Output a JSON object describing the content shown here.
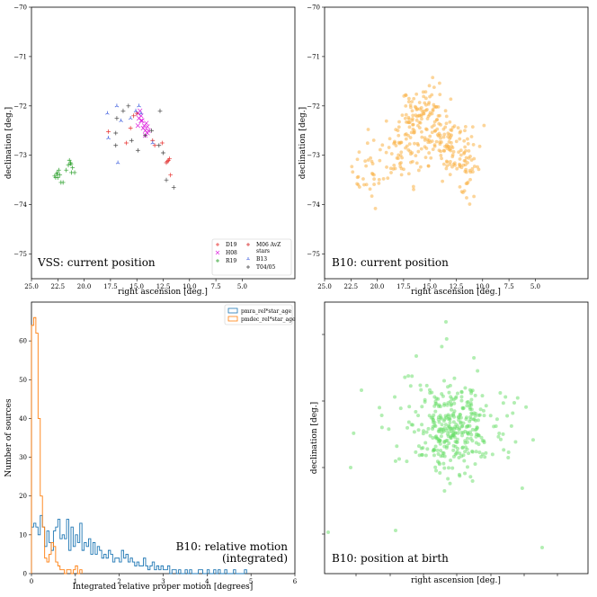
{
  "chart_data": [
    {
      "type": "scatter",
      "title": "VSS: current position",
      "xlabel": "right ascension [deg.]",
      "ylabel": "declination [deg.]",
      "xlim": [
        25,
        0
      ],
      "ylim": [
        -75.5,
        -70
      ],
      "xticks": [
        "25.0",
        "22.5",
        "20.0",
        "17.5",
        "15.0",
        "12.5",
        "10.0",
        "7.5",
        "5.0"
      ],
      "yticks": [
        "−70",
        "−71",
        "−72",
        "−73",
        "−74",
        "−75"
      ],
      "legend_position": "lower-right",
      "series": [
        {
          "name": "D19",
          "marker": "+",
          "color": "#e8312f",
          "points": [
            [
              17.7,
              -72.52
            ],
            [
              16.0,
              -72.75
            ],
            [
              13.3,
              -72.8
            ],
            [
              12.6,
              -72.75
            ],
            [
              12.0,
              -73.1
            ],
            [
              11.9,
              -73.07
            ],
            [
              12.1,
              -73.12
            ],
            [
              11.8,
              -73.4
            ],
            [
              15.6,
              -72.45
            ]
          ]
        },
        {
          "name": "H08",
          "marker": "x",
          "color": "#dd22dd",
          "points": [
            [
              14.9,
              -72.15
            ],
            [
              14.8,
              -72.25
            ],
            [
              14.6,
              -72.2
            ],
            [
              14.7,
              -72.1
            ],
            [
              14.5,
              -72.3
            ],
            [
              14.3,
              -72.4
            ],
            [
              14.2,
              -72.5
            ],
            [
              14.0,
              -72.55
            ],
            [
              14.4,
              -72.45
            ],
            [
              14.1,
              -72.35
            ],
            [
              13.9,
              -72.5
            ],
            [
              14.6,
              -72.3
            ],
            [
              14.2,
              -72.6
            ],
            [
              14.9,
              -72.4
            ],
            [
              14.0,
              -72.42
            ]
          ]
        },
        {
          "name": "R19",
          "marker": "+",
          "color": "#2ca02c",
          "points": [
            [
              22.8,
              -73.42
            ],
            [
              22.6,
              -73.38
            ],
            [
              22.5,
              -73.45
            ],
            [
              22.3,
              -73.4
            ],
            [
              22.2,
              -73.55
            ],
            [
              22.4,
              -73.3
            ],
            [
              21.7,
              -73.3
            ],
            [
              21.5,
              -73.2
            ],
            [
              21.3,
              -73.15
            ],
            [
              21.1,
              -73.25
            ],
            [
              20.9,
              -73.35
            ],
            [
              21.2,
              -73.35
            ],
            [
              22.0,
              -73.55
            ],
            [
              21.4,
              -73.1
            ],
            [
              22.7,
              -73.45
            ],
            [
              22.55,
              -73.35
            ],
            [
              21.25,
              -73.18
            ]
          ]
        },
        {
          "name": "M06 AvZ stars",
          "marker": "+",
          "color": "#d62728",
          "points": [
            [
              15.3,
              -72.2
            ],
            [
              15.0,
              -72.15
            ],
            [
              13.5,
              -72.7
            ],
            [
              12.2,
              -73.15
            ]
          ]
        },
        {
          "name": "B13",
          "marker": "tri",
          "color": "#3355dd",
          "points": [
            [
              17.8,
              -72.15
            ],
            [
              16.9,
              -72.0
            ],
            [
              16.5,
              -72.3
            ],
            [
              15.1,
              -72.1
            ],
            [
              14.8,
              -72.0
            ],
            [
              15.6,
              -72.25
            ],
            [
              16.8,
              -73.15
            ],
            [
              13.5,
              -72.75
            ],
            [
              14.6,
              -72.15
            ],
            [
              17.7,
              -72.65
            ]
          ]
        },
        {
          "name": "T04/05",
          "marker": "+",
          "color": "#444444",
          "points": [
            [
              16.3,
              -72.1
            ],
            [
              15.8,
              -72.0
            ],
            [
              16.9,
              -72.25
            ],
            [
              17.0,
              -72.55
            ],
            [
              15.5,
              -72.7
            ],
            [
              14.9,
              -72.9
            ],
            [
              12.8,
              -72.1
            ],
            [
              12.9,
              -72.8
            ],
            [
              12.5,
              -72.95
            ],
            [
              11.5,
              -73.65
            ],
            [
              12.2,
              -73.5
            ],
            [
              17.0,
              -72.8
            ],
            [
              14.2,
              -72.6
            ],
            [
              13.6,
              -72.5
            ]
          ]
        }
      ]
    },
    {
      "type": "scatter",
      "title": "B10: current position",
      "xlabel": "right ascension [deg.]",
      "ylabel": "declination [deg.]",
      "xlim": [
        25,
        0
      ],
      "ylim": [
        -75.5,
        -70
      ],
      "xticks": [
        "25.0",
        "22.5",
        "20.0",
        "17.5",
        "15.0",
        "12.5",
        "10.0",
        "7.5",
        "5.0"
      ],
      "yticks": [
        "−70",
        "−71",
        "−72",
        "−73",
        "−74",
        "−75"
      ],
      "color": "#f9b347",
      "cluster_centers": [
        [
          15.5,
          -72.3
        ],
        [
          13.0,
          -72.8
        ],
        [
          18.0,
          -73.0
        ],
        [
          21.0,
          -73.4
        ],
        [
          11.5,
          -73.2
        ],
        [
          16.5,
          -72.5
        ]
      ]
    },
    {
      "type": "histogram",
      "title": "B10: relative motion\n(integrated)",
      "title_lines": [
        "B10: relative motion",
        "(integrated)"
      ],
      "xlabel": "Integrated relative proper motion [degrees]",
      "ylabel": "Number of sources",
      "xlim": [
        0,
        6
      ],
      "ylim": [
        0,
        70
      ],
      "xticks": [
        "0",
        "1",
        "2",
        "3",
        "4",
        "5",
        "6"
      ],
      "yticks": [
        "0",
        "10",
        "20",
        "30",
        "40",
        "50",
        "60"
      ],
      "legend_position": "top-right",
      "bin_width": 0.05,
      "series": [
        {
          "name": "pmra_rel*star_age",
          "color": "#1f77b4",
          "bin_start": 0,
          "counts": [
            12,
            13,
            12,
            10,
            15,
            12,
            7,
            11,
            8,
            6,
            11,
            12,
            14,
            9,
            10,
            9,
            14,
            6,
            12,
            7,
            10,
            8,
            13,
            6,
            8,
            7,
            9,
            5,
            8,
            5,
            7,
            6,
            4,
            5,
            4,
            6,
            5,
            3,
            4,
            4,
            3,
            6,
            4,
            5,
            3,
            4,
            3,
            2,
            3,
            2,
            2,
            4,
            2,
            1,
            2,
            3,
            1,
            2,
            1,
            2,
            1,
            1,
            2,
            0,
            1,
            1,
            0,
            1,
            0,
            0,
            1,
            0,
            1,
            0,
            0,
            0,
            1,
            1,
            0,
            0,
            1,
            0,
            0,
            1,
            0,
            1,
            0,
            0,
            1,
            0,
            0,
            0,
            1,
            0,
            0,
            0,
            0,
            1
          ]
        },
        {
          "name": "pmdec_rel*star_age",
          "color": "#ff7f0e",
          "bin_start": 0,
          "counts": [
            64,
            66,
            62,
            40,
            20,
            12,
            4,
            3,
            5,
            8,
            7,
            3,
            2,
            1,
            1,
            0,
            1,
            1,
            0,
            1,
            2,
            0,
            1
          ]
        }
      ]
    },
    {
      "type": "scatter",
      "title": "B10: position at birth",
      "xlabel": "right ascension [deg.]",
      "ylabel": "declination [deg.]",
      "color": "#66dd66"
    }
  ]
}
